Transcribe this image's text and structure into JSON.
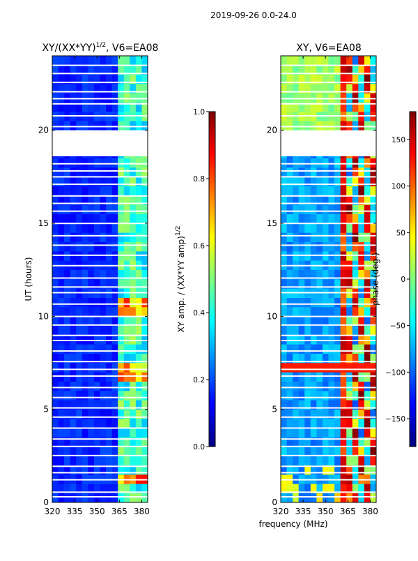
{
  "figure_title": "2019-09-26 0.0-24.0",
  "xlabel_shared": "frequency (MHz)",
  "colormap_stops": [
    "#00007f",
    "#0000ff",
    "#007fff",
    "#00ffff",
    "#7fff7f",
    "#ffff00",
    "#ff7f00",
    "#ff0000",
    "#7f0000"
  ],
  "chart_data": [
    {
      "type": "heatmap",
      "title": "XY/(XX*YY)",
      "title_exponent": "1/2",
      "title_suffix": ", V6=EA08",
      "xlabel": "",
      "ylabel": "UT (hours)",
      "xlim": [
        320,
        384
      ],
      "ylim": [
        0,
        24
      ],
      "xticks": [
        320,
        335,
        350,
        365,
        380
      ],
      "yticks": [
        0,
        5,
        10,
        15,
        20
      ],
      "missing_time_ranges_hours": [
        [
          18.6,
          20.0
        ]
      ],
      "colorbar": {
        "label": "XY amp. / (XX*YY amp)",
        "label_exponent": "1/2",
        "range": [
          0.0,
          1.0
        ],
        "ticks": [
          "0.0",
          "0.2",
          "0.4",
          "0.6",
          "0.8",
          "1.0"
        ],
        "tick_values": [
          0.0,
          0.2,
          0.4,
          0.6,
          0.8,
          1.0
        ]
      }
    },
    {
      "type": "heatmap",
      "title": "XY, V6=EA08",
      "xlabel": "frequency (MHz)",
      "ylabel": "",
      "xlim": [
        320,
        384
      ],
      "ylim": [
        0,
        24
      ],
      "xticks": [
        320,
        335,
        350,
        365,
        380
      ],
      "yticks": [
        0,
        5,
        10,
        15,
        20
      ],
      "missing_time_ranges_hours": [
        [
          18.6,
          20.0
        ]
      ],
      "colorbar": {
        "label": "phase (deg.)",
        "range": [
          -180,
          180
        ],
        "ticks": [
          "−150",
          "−100",
          "−50",
          "0",
          "50",
          "100",
          "150"
        ],
        "tick_values": [
          -150,
          -100,
          -50,
          0,
          50,
          100,
          150
        ]
      }
    }
  ]
}
